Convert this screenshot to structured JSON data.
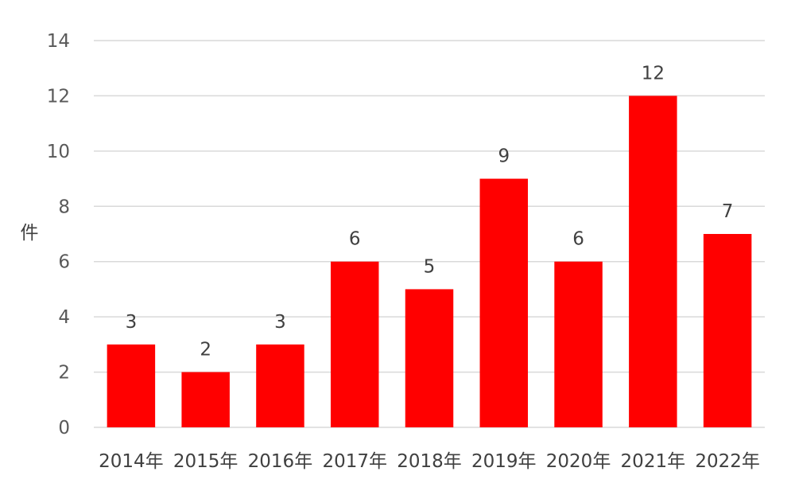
{
  "chart_data": {
    "type": "bar",
    "title": "",
    "xlabel": "",
    "ylabel": "件",
    "categories": [
      "2014年",
      "2015年",
      "2016年",
      "2017年",
      "2018年",
      "2019年",
      "2020年",
      "2021年",
      "2022年"
    ],
    "values": [
      3,
      2,
      3,
      6,
      5,
      9,
      6,
      12,
      7
    ],
    "ylim": [
      0,
      14
    ],
    "yticks": [
      0,
      2,
      4,
      6,
      8,
      10,
      12,
      14
    ],
    "grid": true,
    "legend": "none",
    "data_labels": true,
    "bar_color": "#ff0000"
  }
}
